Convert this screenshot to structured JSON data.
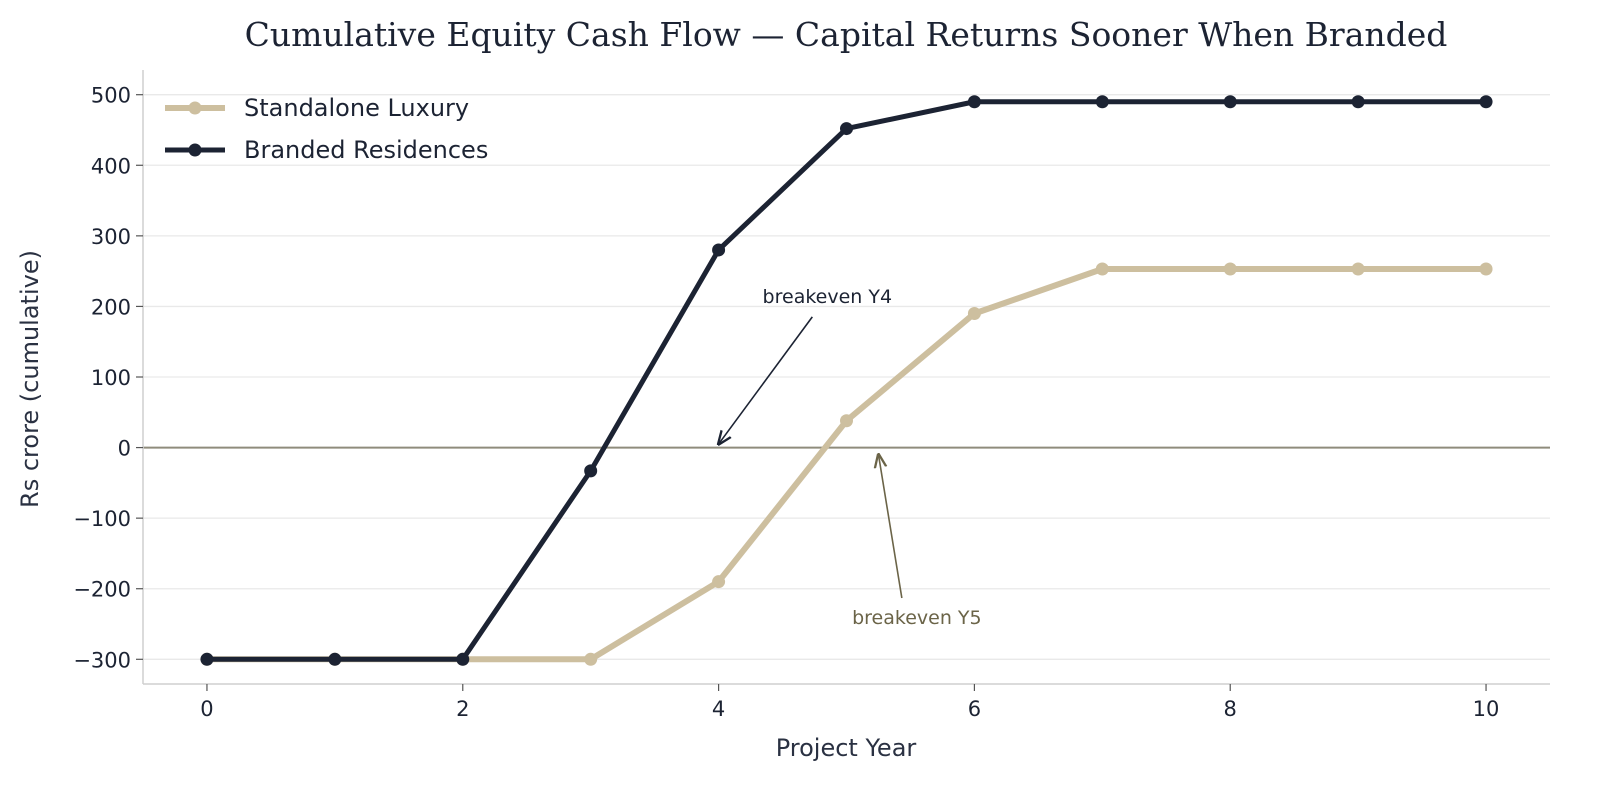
{
  "chart_data": {
    "type": "line",
    "title": "Cumulative Equity Cash Flow — Capital Returns Sooner When Branded",
    "xlabel": "Project Year",
    "ylabel": "Rs crore (cumulative)",
    "x": [
      0,
      1,
      2,
      3,
      4,
      5,
      6,
      7,
      8,
      9,
      10
    ],
    "xlim": [
      -0.5,
      10.5
    ],
    "ylim": [
      -335,
      535
    ],
    "xticks": [
      0,
      2,
      4,
      6,
      8,
      10
    ],
    "yticks": [
      -300,
      -200,
      -100,
      0,
      100,
      200,
      300,
      400,
      500
    ],
    "xtick_labels": [
      "0",
      "2",
      "4",
      "6",
      "8",
      "10"
    ],
    "ytick_labels": [
      "−300",
      "−200",
      "−100",
      "0",
      "100",
      "200",
      "300",
      "400",
      "500"
    ],
    "grid": "horizontal",
    "legend_position": "top-left",
    "series": [
      {
        "name": "Standalone Luxury",
        "color": "#cdbf9f",
        "values": [
          -300,
          -300,
          -300,
          -300,
          -190,
          38,
          190,
          253,
          253,
          253,
          253
        ]
      },
      {
        "name": "Branded Residences",
        "color": "#1c2333",
        "values": [
          -300,
          -300,
          -300,
          -33,
          280,
          452,
          490,
          490,
          490,
          490,
          490
        ]
      }
    ],
    "annotations": [
      {
        "text": "breakeven Y4",
        "color": "#1c2333",
        "text_at": [
          4.85,
          205
        ],
        "arrow_to": [
          4.0,
          5
        ]
      },
      {
        "text": "breakeven Y5",
        "color": "#6b6448",
        "text_at": [
          5.55,
          -250
        ],
        "arrow_to": [
          5.25,
          -10
        ]
      }
    ],
    "zero_line_color": "#8f8c7c"
  }
}
